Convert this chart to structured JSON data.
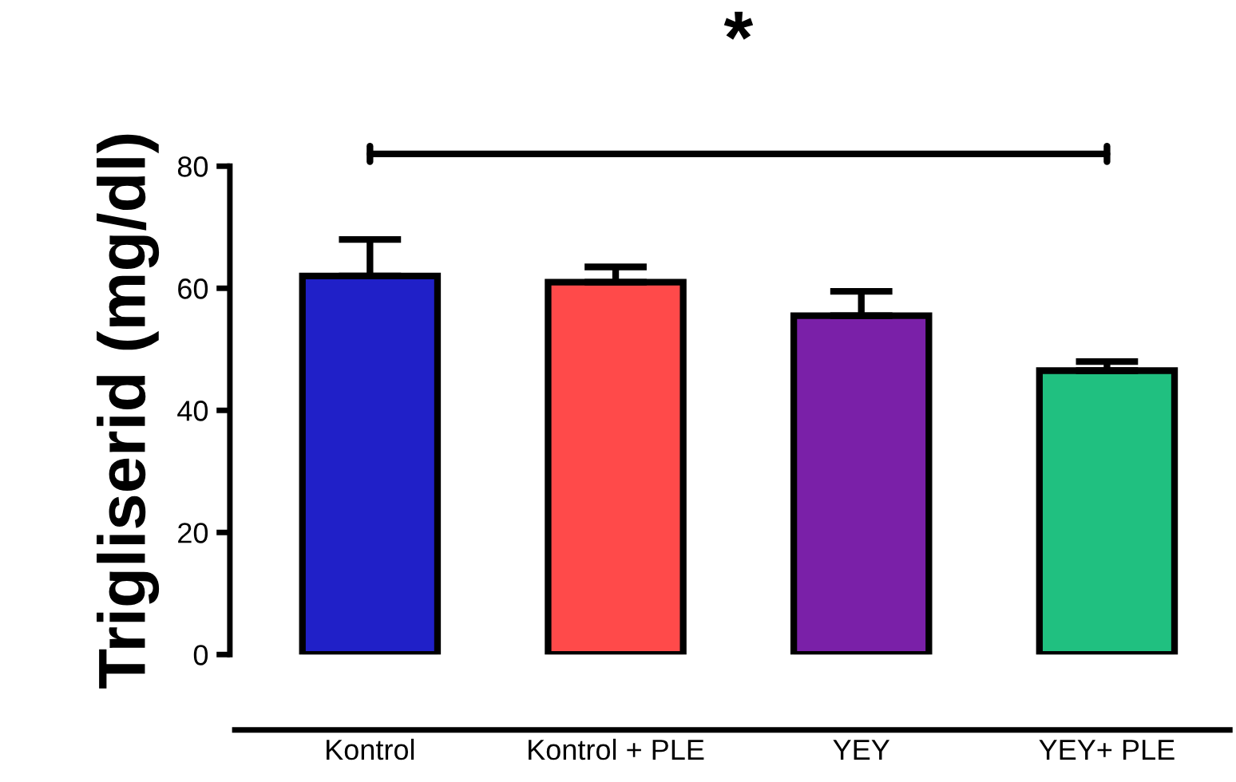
{
  "chart_data": {
    "type": "bar",
    "ylabel": "Trigliserid (mg/dl)",
    "categories": [
      "Kontrol",
      "Kontrol + PLE",
      "YEY",
      "YEY+ PLE"
    ],
    "values": [
      62,
      61,
      55.5,
      46.5
    ],
    "colors": [
      "#2020c8",
      "#ff4a4a",
      "#7a20a8",
      "#20c080"
    ],
    "errors": [
      [
        62,
        68
      ],
      [
        61,
        63.5
      ],
      [
        55.5,
        59.5
      ],
      [
        46.5,
        48
      ]
    ],
    "ylim": [
      0,
      80
    ],
    "yticks": [
      0,
      20,
      40,
      60,
      80
    ],
    "grid": false,
    "legend": false,
    "annotations": [
      "*"
    ]
  }
}
